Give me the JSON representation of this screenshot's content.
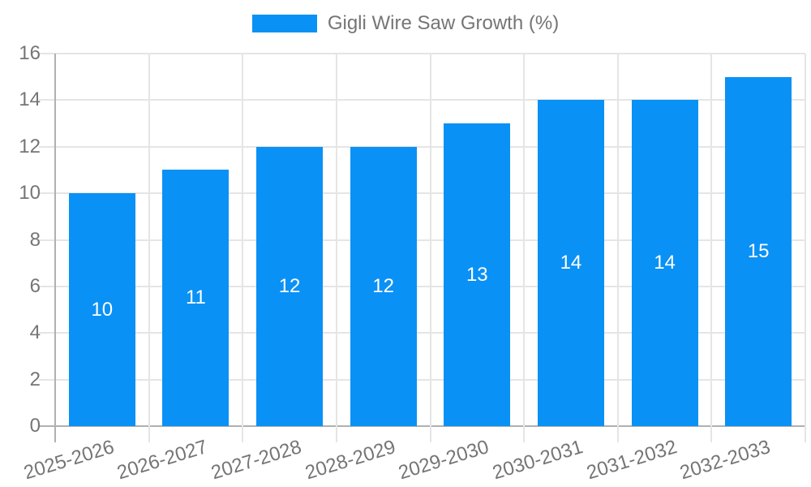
{
  "chart_data": {
    "type": "bar",
    "title": "",
    "legend_label": "Gigli Wire Saw Growth (%)",
    "legend_position": "top-center",
    "categories": [
      "2025-2026",
      "2026-2027",
      "2027-2028",
      "2028-2029",
      "2029-2030",
      "2030-2031",
      "2031-2032",
      "2032-2033"
    ],
    "values": [
      10,
      11,
      12,
      12,
      13,
      14,
      14,
      15
    ],
    "xlabel": "",
    "ylabel": "",
    "ylim": [
      0,
      16
    ],
    "ytick_step": 2,
    "ytick_labels": [
      "0",
      "2",
      "4",
      "6",
      "8",
      "10",
      "12",
      "14",
      "16"
    ],
    "grid": "on",
    "x_label_rotation_deg": -17,
    "colors": {
      "bar": "#0a91f5",
      "bar_value_label": "#ffffff",
      "axis_text": "#757575",
      "gridline": "#e5e5e5",
      "zero_line": "#b0b0b0"
    }
  }
}
